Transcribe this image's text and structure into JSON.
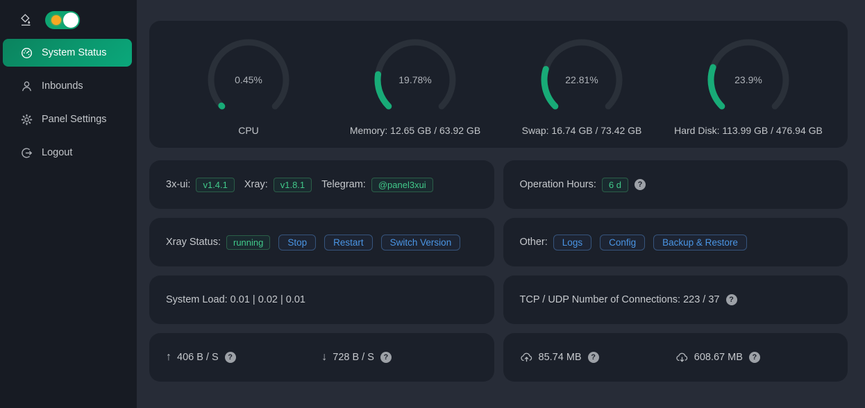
{
  "sidebar": {
    "theme_toggle": {
      "state": "on"
    },
    "items": [
      {
        "label": "System Status",
        "icon": "dashboard-icon",
        "active": true
      },
      {
        "label": "Inbounds",
        "icon": "user-icon",
        "active": false
      },
      {
        "label": "Panel Settings",
        "icon": "gear-icon",
        "active": false
      },
      {
        "label": "Logout",
        "icon": "logout-icon",
        "active": false
      }
    ]
  },
  "gauges": [
    {
      "percent": 0.45,
      "value_label": "0.45%",
      "label": "CPU"
    },
    {
      "percent": 19.78,
      "value_label": "19.78%",
      "label": "Memory: 12.65 GB / 63.92 GB"
    },
    {
      "percent": 22.81,
      "value_label": "22.81%",
      "label": "Swap: 16.74 GB / 73.42 GB"
    },
    {
      "percent": 23.9,
      "value_label": "23.9%",
      "label": "Hard Disk: 113.99 GB / 476.94 GB"
    }
  ],
  "info_cards": {
    "versions": {
      "app_label": "3x-ui:",
      "app_tag": "v1.4.1",
      "xray_label": "Xray:",
      "xray_tag": "v1.8.1",
      "telegram_label": "Telegram:",
      "telegram_tag": "@panel3xui"
    },
    "operation_hours": {
      "label": "Operation Hours:",
      "tag": "6 d"
    },
    "xray_status": {
      "label": "Xray Status:",
      "status_tag": "running",
      "buttons": [
        "Stop",
        "Restart",
        "Switch Version"
      ]
    },
    "other": {
      "label": "Other:",
      "buttons": [
        "Logs",
        "Config",
        "Backup & Restore"
      ]
    },
    "system_load": {
      "text": "System Load: 0.01 | 0.02 | 0.01"
    },
    "connections": {
      "text": "TCP / UDP Number of Connections: 223 / 37"
    },
    "network_speed": {
      "upload": "406 B / S",
      "download": "728 B / S"
    },
    "network_total": {
      "upload": "85.74 MB",
      "download": "608.67 MB"
    }
  },
  "icons": {
    "up_arrow": "↑",
    "down_arrow": "↓",
    "help": "?"
  },
  "colors": {
    "sidebar_bg": "#171b23",
    "main_bg": "#272c37",
    "card_bg": "#1b202a",
    "accent_green": "#0ba87b",
    "gauge_track": "#2a3039",
    "gauge_fill": "#18ab77",
    "tag_green_text": "#41c98a",
    "button_blue_text": "#4a95e4",
    "toggle_green": "#0ea572",
    "toggle_sun": "#f6a823"
  }
}
